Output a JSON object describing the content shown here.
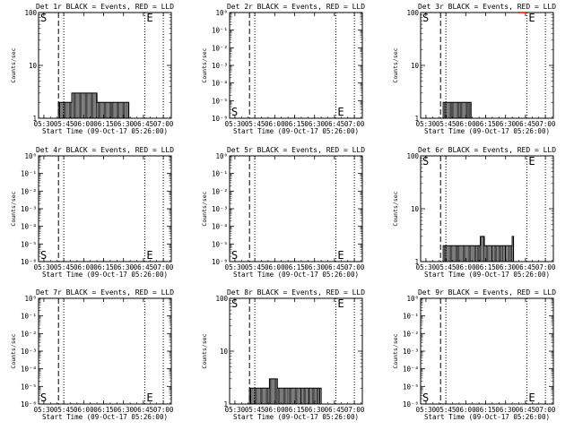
{
  "chart_data": [
    {
      "type": "line",
      "title": "Det 1r BLACK = Events, RED = LLD",
      "xlabel": "Start Time (09-Oct-17 05:26:00)",
      "ylabel": "Counts/sec",
      "x_ticks": [
        "05:30",
        "05:45",
        "06:00",
        "06:15",
        "06:30",
        "06:45",
        "07:00"
      ],
      "y_scale": "log",
      "y_ticks": [
        "1",
        "10",
        "100"
      ],
      "ylim": [
        1,
        100
      ],
      "xlim_minutes_since_0526": [
        0,
        100
      ],
      "dashed_line_time": "05:41",
      "dotted_line_times": [
        "05:45",
        "06:46",
        "07:00"
      ],
      "corner_labels": {
        "left": "S",
        "right": "E"
      },
      "series": [
        {
          "color": "#000000",
          "x": [
            0,
            1.5,
            14,
            15,
            16,
            25,
            33,
            44,
            55,
            67,
            68,
            69
          ],
          "y": [
            1,
            1,
            1,
            2,
            2,
            3,
            3,
            2,
            2,
            2,
            1,
            1
          ]
        },
        {
          "color": "#ff0000",
          "x": [],
          "y": []
        }
      ]
    },
    {
      "type": "line",
      "title": "Det 2r BLACK = Events, RED = LLD",
      "xlabel": "Start Time (09-Oct-17 05:26:00)",
      "ylabel": "Counts/sec",
      "x_ticks": [
        "05:30",
        "05:45",
        "06:00",
        "06:15",
        "06:30",
        "06:45",
        "07:00"
      ],
      "y_scale": "log",
      "y_ticks": [
        "10⁰",
        "10⁻¹",
        "10⁻²",
        "10⁻³",
        "10⁻⁴",
        "10⁻⁵",
        "10⁻⁶"
      ],
      "ylim": [
        1e-06,
        1
      ],
      "xlim_minutes_since_0526": [
        0,
        100
      ],
      "dashed_line_time": "05:41",
      "dotted_line_times": [
        "05:45",
        "06:46",
        "07:00"
      ],
      "corner_labels": {
        "left": "S",
        "right": "E"
      },
      "series": [
        {
          "color": "#000000",
          "x": [],
          "y": []
        },
        {
          "color": "#ff0000",
          "x": [],
          "y": []
        }
      ]
    },
    {
      "type": "line",
      "title": "Det 3r BLACK = Events, RED = LLD",
      "xlabel": "Start Time (09-Oct-17 05:26:00)",
      "ylabel": "Counts/sec",
      "x_ticks": [
        "05:30",
        "05:45",
        "06:00",
        "06:15",
        "06:30",
        "06:45",
        "07:00"
      ],
      "y_scale": "log",
      "y_ticks": [
        "1",
        "10",
        "100"
      ],
      "ylim": [
        1,
        100
      ],
      "xlim_minutes_since_0526": [
        0,
        100
      ],
      "dashed_line_time": "05:41",
      "dotted_line_times": [
        "05:45",
        "06:46",
        "07:00"
      ],
      "corner_labels": {
        "left": "S",
        "right": "E"
      },
      "series": [
        {
          "color": "#000000",
          "x": [
            0,
            1.5,
            14,
            16,
            17,
            24,
            30,
            36,
            38,
            45,
            47,
            48,
            52,
            53,
            54,
            55
          ],
          "y": [
            1,
            1,
            1,
            1,
            2,
            2,
            2,
            2,
            1,
            1,
            1,
            1,
            1,
            1,
            1,
            1
          ]
        },
        {
          "color": "#ff0000",
          "x": [
            73,
            80
          ],
          "y": [
            100,
            100
          ]
        }
      ]
    },
    {
      "type": "line",
      "title": "Det 4r BLACK = Events, RED = LLD",
      "xlabel": "Start Time (09-Oct-17 05:26:00)",
      "ylabel": "Counts/sec",
      "x_ticks": [
        "05:30",
        "05:45",
        "06:00",
        "06:15",
        "06:30",
        "06:45",
        "07:00"
      ],
      "y_scale": "log",
      "y_ticks": [
        "10⁰",
        "10⁻¹",
        "10⁻²",
        "10⁻³",
        "10⁻⁴",
        "10⁻⁵",
        "10⁻⁶"
      ],
      "ylim": [
        1e-06,
        1
      ],
      "xlim_minutes_since_0526": [
        0,
        100
      ],
      "dashed_line_time": "05:41",
      "dotted_line_times": [
        "05:45",
        "06:46",
        "07:00"
      ],
      "corner_labels": {
        "left": "S",
        "right": "E"
      },
      "series": [
        {
          "color": "#000000",
          "x": [],
          "y": []
        },
        {
          "color": "#ff0000",
          "x": [],
          "y": []
        }
      ]
    },
    {
      "type": "line",
      "title": "Det 5r BLACK = Events, RED = LLD",
      "xlabel": "Start Time (09-Oct-17 05:26:00)",
      "ylabel": "Counts/sec",
      "x_ticks": [
        "05:30",
        "05:45",
        "06:00",
        "06:15",
        "06:30",
        "06:45",
        "07:00"
      ],
      "y_scale": "log",
      "y_ticks": [
        "10⁰",
        "10⁻¹",
        "10⁻²",
        "10⁻³",
        "10⁻⁴",
        "10⁻⁵",
        "10⁻⁶"
      ],
      "ylim": [
        1e-06,
        1
      ],
      "xlim_minutes_since_0526": [
        0,
        100
      ],
      "dashed_line_time": "05:41",
      "dotted_line_times": [
        "05:45",
        "06:46",
        "07:00"
      ],
      "corner_labels": {
        "left": "S",
        "right": "E"
      },
      "series": [
        {
          "color": "#000000",
          "x": [],
          "y": []
        },
        {
          "color": "#ff0000",
          "x": [],
          "y": []
        }
      ]
    },
    {
      "type": "line",
      "title": "Det 6r BLACK = Events, RED = LLD",
      "xlabel": "Start Time (09-Oct-17 05:26:00)",
      "ylabel": "Counts/sec",
      "x_ticks": [
        "05:30",
        "05:45",
        "06:00",
        "06:15",
        "06:30",
        "06:45",
        "07:00"
      ],
      "y_scale": "log",
      "y_ticks": [
        "1",
        "10",
        "100"
      ],
      "ylim": [
        1,
        100
      ],
      "xlim_minutes_since_0526": [
        0,
        100
      ],
      "dashed_line_time": "05:41",
      "dotted_line_times": [
        "05:45",
        "06:46",
        "07:00"
      ],
      "corner_labels": {
        "left": "S",
        "right": "E"
      },
      "series": [
        {
          "color": "#000000",
          "x": [
            0,
            1.5,
            14,
            16,
            17,
            28,
            42,
            45,
            48,
            54,
            59,
            62,
            64,
            67,
            69,
            70
          ],
          "y": [
            1,
            1,
            1,
            1,
            2,
            2,
            2,
            3,
            2,
            2,
            2,
            2,
            2,
            2,
            3,
            1
          ]
        },
        {
          "color": "#ff0000",
          "x": [],
          "y": []
        }
      ]
    },
    {
      "type": "line",
      "title": "Det 7r BLACK = Events, RED = LLD",
      "xlabel": "Start Time (09-Oct-17 05:26:00)",
      "ylabel": "Counts/sec",
      "x_ticks": [
        "05:30",
        "05:45",
        "06:00",
        "06:15",
        "06:30",
        "06:45",
        "07:00"
      ],
      "y_scale": "log",
      "y_ticks": [
        "10⁰",
        "10⁻¹",
        "10⁻²",
        "10⁻³",
        "10⁻⁴",
        "10⁻⁵",
        "10⁻⁶"
      ],
      "ylim": [
        1e-06,
        1
      ],
      "xlim_minutes_since_0526": [
        0,
        100
      ],
      "dashed_line_time": "05:41",
      "dotted_line_times": [
        "05:45",
        "06:46",
        "07:00"
      ],
      "corner_labels": {
        "left": "S",
        "right": "E"
      },
      "series": [
        {
          "color": "#000000",
          "x": [],
          "y": []
        },
        {
          "color": "#ff0000",
          "x": [],
          "y": []
        }
      ]
    },
    {
      "type": "line",
      "title": "Det 8r BLACK = Events, RED = LLD",
      "xlabel": "Start Time (09-Oct-17 05:26:00)",
      "ylabel": "Counts/sec",
      "x_ticks": [
        "05:30",
        "05:45",
        "06:00",
        "06:15",
        "06:30",
        "06:45",
        "07:00"
      ],
      "y_scale": "log",
      "y_ticks": [
        "1",
        "10",
        "100"
      ],
      "ylim": [
        1,
        100
      ],
      "xlim_minutes_since_0526": [
        0,
        100
      ],
      "dashed_line_time": "05:41",
      "dotted_line_times": [
        "05:45",
        "06:46",
        "07:00"
      ],
      "corner_labels": {
        "left": "S",
        "right": "E"
      },
      "series": [
        {
          "color": "#000000",
          "x": [
            0,
            1.5,
            14,
            15,
            16,
            20,
            30,
            36,
            44,
            54,
            60,
            65,
            67,
            68,
            69
          ],
          "y": [
            1,
            1,
            1,
            2,
            2,
            2,
            3,
            2,
            2,
            2,
            2,
            2,
            2,
            2,
            1
          ]
        },
        {
          "color": "#ff0000",
          "x": [],
          "y": []
        }
      ]
    },
    {
      "type": "line",
      "title": "Det 9r BLACK = Events, RED = LLD",
      "xlabel": "Start Time (09-Oct-17 05:26:00)",
      "ylabel": "Counts/sec",
      "x_ticks": [
        "05:30",
        "05:45",
        "06:00",
        "06:15",
        "06:30",
        "06:45",
        "07:00"
      ],
      "y_scale": "log",
      "y_ticks": [
        "10⁰",
        "10⁻¹",
        "10⁻²",
        "10⁻³",
        "10⁻⁴",
        "10⁻⁵",
        "10⁻⁶"
      ],
      "ylim": [
        1e-06,
        1
      ],
      "xlim_minutes_since_0526": [
        0,
        100
      ],
      "dashed_line_time": "05:41",
      "dotted_line_times": [
        "05:45",
        "06:46",
        "07:00"
      ],
      "corner_labels": {
        "left": "S",
        "right": "E"
      },
      "series": [
        {
          "color": "#000000",
          "x": [],
          "y": []
        },
        {
          "color": "#ff0000",
          "x": [],
          "y": []
        }
      ]
    }
  ]
}
